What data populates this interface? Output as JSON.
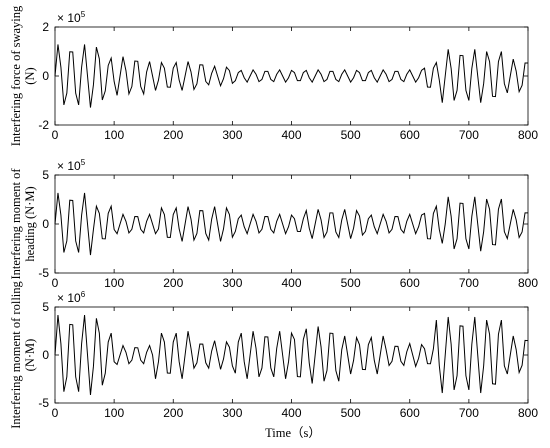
{
  "chart_data": {
    "type": "line",
    "x": [
      0,
      5,
      10,
      15,
      20,
      25,
      30,
      35,
      40,
      45,
      50,
      55,
      60,
      65,
      70,
      75,
      80,
      85,
      90,
      95,
      100,
      105,
      110,
      115,
      120,
      125,
      130,
      135,
      140,
      145,
      150,
      155,
      160,
      165,
      170,
      175,
      180,
      185,
      190,
      195,
      200,
      205,
      210,
      215,
      220,
      225,
      230,
      235,
      240,
      245,
      250,
      255,
      260,
      265,
      270,
      275,
      280,
      285,
      290,
      295,
      300,
      305,
      310,
      315,
      320,
      325,
      330,
      335,
      340,
      345,
      350,
      355,
      360,
      365,
      370,
      375,
      380,
      385,
      390,
      395,
      400,
      405,
      410,
      415,
      420,
      425,
      430,
      435,
      440,
      445,
      450,
      455,
      460,
      465,
      470,
      475,
      480,
      485,
      490,
      495,
      500,
      505,
      510,
      515,
      520,
      525,
      530,
      535,
      540,
      545,
      550,
      555,
      560,
      565,
      570,
      575,
      580,
      585,
      590,
      595,
      600,
      605,
      610,
      615,
      620,
      625,
      630,
      635,
      640,
      645,
      650,
      655,
      660,
      665,
      670,
      675,
      680,
      685,
      690,
      695,
      700,
      705,
      710,
      715,
      720,
      725,
      730,
      735,
      740,
      745,
      750,
      755,
      760,
      765,
      770,
      775,
      780,
      785,
      790,
      795,
      800
    ],
    "xlim": [
      0,
      800
    ],
    "xticks": [
      0,
      100,
      200,
      300,
      400,
      500,
      600,
      700,
      800
    ],
    "xlabel": "Time（s）",
    "panels": [
      {
        "ylabel": [
          "Interfering force of swaying",
          "(N)"
        ],
        "y_exponent": {
          "base": "× 10",
          "power": "5"
        },
        "ylim": [
          -2,
          2
        ],
        "yticks": [
          -2,
          0,
          2
        ],
        "series": [
          {
            "color": "#000000",
            "values": [
              0,
              1.29,
              0.36,
              -1.18,
              -0.7,
              0.99,
              0.98,
              -0.7,
              -1.18,
              0.36,
              1.29,
              0,
              -1.29,
              -0.36,
              1.18,
              0.7,
              -0.98,
              -0.61,
              0.43,
              0.73,
              -0.22,
              -0.79,
              0,
              0.79,
              0.22,
              -0.73,
              -0.43,
              0.61,
              0.6,
              -0.43,
              -0.73,
              0.17,
              0.59,
              0,
              -0.59,
              -0.17,
              0.55,
              0.32,
              -0.45,
              -0.46,
              0.32,
              0.55,
              -0.17,
              -0.59,
              0,
              0.59,
              0.17,
              -0.55,
              -0.32,
              0.46,
              0.45,
              -0.22,
              -0.36,
              0.11,
              0.4,
              0,
              -0.4,
              -0.11,
              0.36,
              0.22,
              -0.3,
              -0.19,
              0.14,
              0.23,
              -0.07,
              -0.25,
              0,
              0.25,
              0.07,
              -0.23,
              -0.14,
              0.19,
              0.19,
              -0.14,
              -0.23,
              0.07,
              0.25,
              0,
              -0.25,
              -0.07,
              0.23,
              0.14,
              -0.19,
              -0.19,
              0.14,
              0.23,
              -0.07,
              -0.25,
              0,
              0.25,
              0.07,
              -0.23,
              -0.14,
              0.19,
              0.19,
              -0.14,
              -0.23,
              0.07,
              0.25,
              0,
              -0.25,
              -0.07,
              0.23,
              0.14,
              -0.19,
              -0.19,
              0.14,
              0.23,
              -0.07,
              -0.25,
              0,
              0.25,
              0.07,
              -0.23,
              -0.14,
              0.19,
              0.19,
              -0.14,
              -0.23,
              0.07,
              0.25,
              0,
              -0.25,
              -0.07,
              0.23,
              0.32,
              -0.45,
              -0.46,
              0.32,
              0.55,
              -0.17,
              -1.09,
              0,
              1.09,
              0.31,
              -1.0,
              -0.59,
              0.84,
              0.83,
              -0.59,
              -1.0,
              0.31,
              1.09,
              0,
              -1.09,
              -0.31,
              1.0,
              0.59,
              -0.83,
              -0.84,
              0.59,
              1.0,
              -0.31,
              -0.69,
              0,
              0.69,
              0.2,
              -0.64,
              -0.38,
              0.53,
              0.53
            ]
          }
        ]
      },
      {
        "ylabel": [
          "Interfering moment of",
          "heading (N·M)"
        ],
        "y_exponent": {
          "base": "× 10",
          "power": "5"
        },
        "ylim": [
          -5,
          5
        ],
        "yticks": [
          -5,
          0,
          5
        ],
        "series": [
          {
            "color": "#000000",
            "values": [
              0,
              3.17,
              0.9,
              -2.91,
              -1.73,
              2.43,
              2.4,
              -1.73,
              -2.91,
              0.9,
              3.17,
              0,
              -3.17,
              -0.56,
              1.82,
              1.08,
              -1.5,
              -1.52,
              1.08,
              1.82,
              -0.56,
              -0.99,
              0,
              0.99,
              0.28,
              -0.91,
              -0.54,
              0.76,
              0.75,
              -0.54,
              -0.91,
              0.28,
              0.99,
              0,
              -0.99,
              -0.5,
              1.64,
              0.97,
              -1.35,
              -1.37,
              0.97,
              1.64,
              -0.5,
              -1.78,
              0,
              1.78,
              0.5,
              -1.64,
              -0.97,
              1.37,
              1.35,
              -0.97,
              -1.64,
              0.5,
              1.78,
              0,
              -1.78,
              -0.5,
              1.64,
              0.97,
              -1.35,
              -0.76,
              0.54,
              0.91,
              -0.28,
              -0.99,
              0,
              0.99,
              0.28,
              -0.91,
              -0.54,
              0.76,
              0.75,
              -0.54,
              -0.91,
              0.28,
              0.99,
              0,
              -0.99,
              -0.28,
              0.91,
              0.54,
              -0.75,
              -0.76,
              0.54,
              1.37,
              -0.42,
              -1.49,
              0,
              1.49,
              0.42,
              -1.37,
              -0.81,
              1.14,
              1.13,
              -0.81,
              -1.37,
              0.42,
              1.49,
              0,
              -1.49,
              -0.42,
              1.37,
              0.81,
              -1.13,
              -0.76,
              0.54,
              0.91,
              -0.28,
              -0.99,
              0,
              0.99,
              0.28,
              -0.91,
              -0.54,
              0.76,
              0.75,
              -0.54,
              -0.91,
              0.28,
              0.99,
              0,
              -0.99,
              -0.28,
              0.91,
              1.08,
              -1.5,
              -1.52,
              1.08,
              1.82,
              -0.56,
              -1.98,
              0,
              2.77,
              0.78,
              -2.55,
              -1.51,
              2.13,
              2.1,
              -1.51,
              -2.55,
              0.78,
              2.77,
              0,
              -2.77,
              -0.78,
              2.55,
              1.51,
              -2.1,
              -2.13,
              1.51,
              2.55,
              -0.78,
              -1.49,
              0,
              1.49,
              0.42,
              -1.37,
              -0.81,
              1.14,
              1.13
            ]
          }
        ]
      },
      {
        "ylabel": [
          "Interfering moment of rolling",
          "(N·M)"
        ],
        "y_exponent": {
          "base": "× 10",
          "power": "6"
        },
        "ylim": [
          -5,
          5
        ],
        "yticks": [
          -5,
          0,
          5
        ],
        "series": [
          {
            "color": "#000000",
            "values": [
              0,
              4.16,
              1.18,
              -3.82,
              -2.27,
              3.19,
              3.15,
              -2.27,
              -3.82,
              1.18,
              4.16,
              0,
              -4.16,
              -1.18,
              3.82,
              2.27,
              -3.15,
              -1.9,
              1.35,
              2.28,
              -0.7,
              -0.99,
              0,
              0.99,
              0.28,
              -0.91,
              -0.54,
              0.76,
              0.75,
              -0.54,
              -0.91,
              0.28,
              0.99,
              0,
              -2.48,
              -0.7,
              2.28,
              1.35,
              -1.88,
              -1.9,
              1.35,
              2.28,
              -0.7,
              -2.48,
              0,
              2.48,
              0.7,
              -1.37,
              -0.81,
              1.14,
              1.13,
              -0.81,
              -1.37,
              0.42,
              1.49,
              0,
              -1.49,
              -0.42,
              1.37,
              0.81,
              -1.13,
              -1.9,
              1.35,
              2.28,
              -0.7,
              -2.48,
              0,
              2.48,
              0.7,
              -2.28,
              -1.35,
              1.9,
              1.88,
              -1.35,
              -2.28,
              0.7,
              2.48,
              0,
              -2.48,
              -0.7,
              2.28,
              1.62,
              -2.25,
              -2.28,
              1.62,
              2.73,
              -0.84,
              -2.97,
              0,
              2.97,
              0.84,
              -2.73,
              -1.62,
              2.28,
              2.25,
              -1.62,
              -2.73,
              0.56,
              1.98,
              0,
              -1.98,
              -0.56,
              1.82,
              1.08,
              -1.5,
              -1.52,
              1.08,
              1.82,
              -0.56,
              -1.98,
              0,
              1.98,
              0.56,
              -1.09,
              -0.65,
              0.91,
              0.9,
              -0.65,
              -1.09,
              0.34,
              1.19,
              0,
              -1.19,
              -0.34,
              1.09,
              0.65,
              -0.9,
              -0.91,
              0.65,
              3.64,
              -1.12,
              -3.96,
              0,
              3.96,
              1.12,
              -3.64,
              -2.16,
              3.04,
              3.0,
              -2.16,
              -3.64,
              1.12,
              3.96,
              0,
              -3.96,
              -1.12,
              3.64,
              2.16,
              -3.0,
              -3.04,
              2.16,
              3.64,
              -1.12,
              -1.98,
              0,
              1.98,
              0.56,
              -1.82,
              -1.08,
              1.52,
              1.5
            ]
          }
        ]
      }
    ]
  }
}
